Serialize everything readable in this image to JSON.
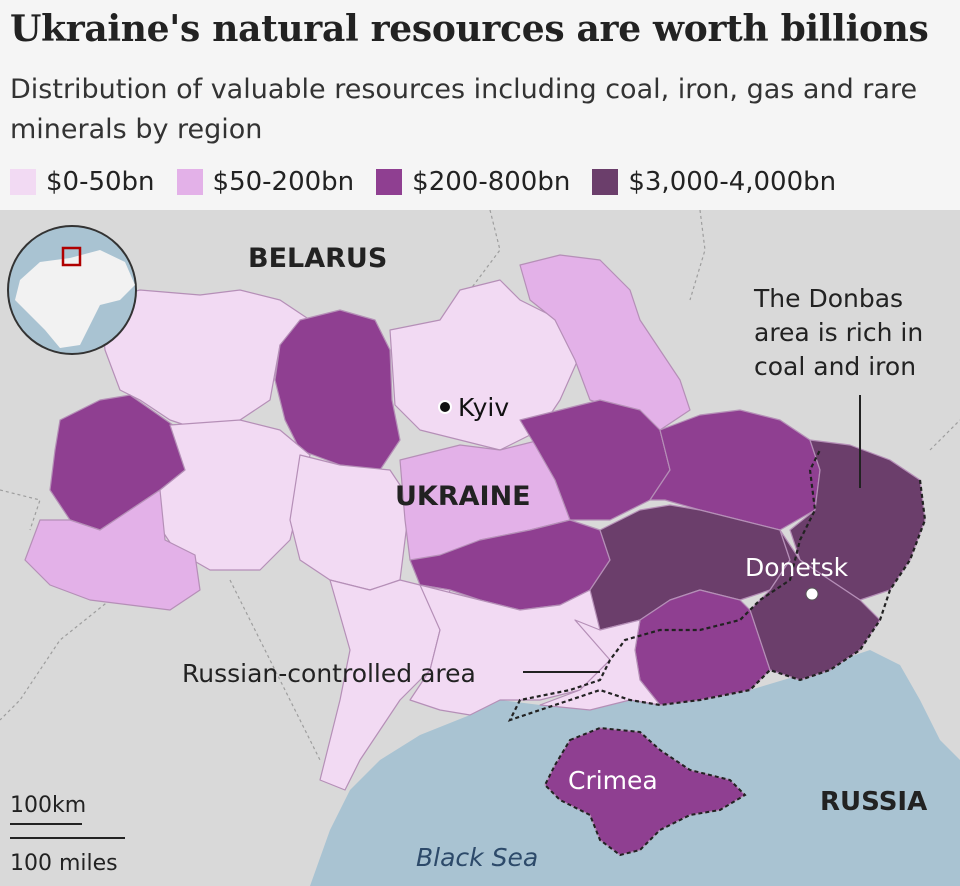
{
  "title": "Ukraine's natural resources are worth billions",
  "subtitle": "Distribution of valuable resources including coal, iron, gas and rare minerals by region",
  "legend": [
    {
      "label": "$0-50bn",
      "color": "#f2daf3"
    },
    {
      "label": "$50-200bn",
      "color": "#e3b1e8"
    },
    {
      "label": "$200-800bn",
      "color": "#8f3f91"
    },
    {
      "label": "$3,000-4,000bn",
      "color": "#6b3e6b"
    }
  ],
  "labels": {
    "belarus": "BELARUS",
    "ukraine": "UKRAINE",
    "russia": "RUSSIA",
    "kyiv": "Kyiv",
    "donetsk": "Donetsk",
    "crimea": "Crimea",
    "black_sea": "Black Sea",
    "russian_controlled": "Russian-controlled area",
    "donbas_note": [
      "The Donbas",
      "area is rich in",
      "coal and iron"
    ],
    "scale_km": "100km",
    "scale_miles": "100 miles"
  },
  "colors": {
    "land": "#d9d9d9",
    "sea": "#a9c3d2",
    "background": "#f5f5f5",
    "region_border": "#b58fb7",
    "occupied_line": "#222222",
    "locator_marker": "#b00000"
  }
}
